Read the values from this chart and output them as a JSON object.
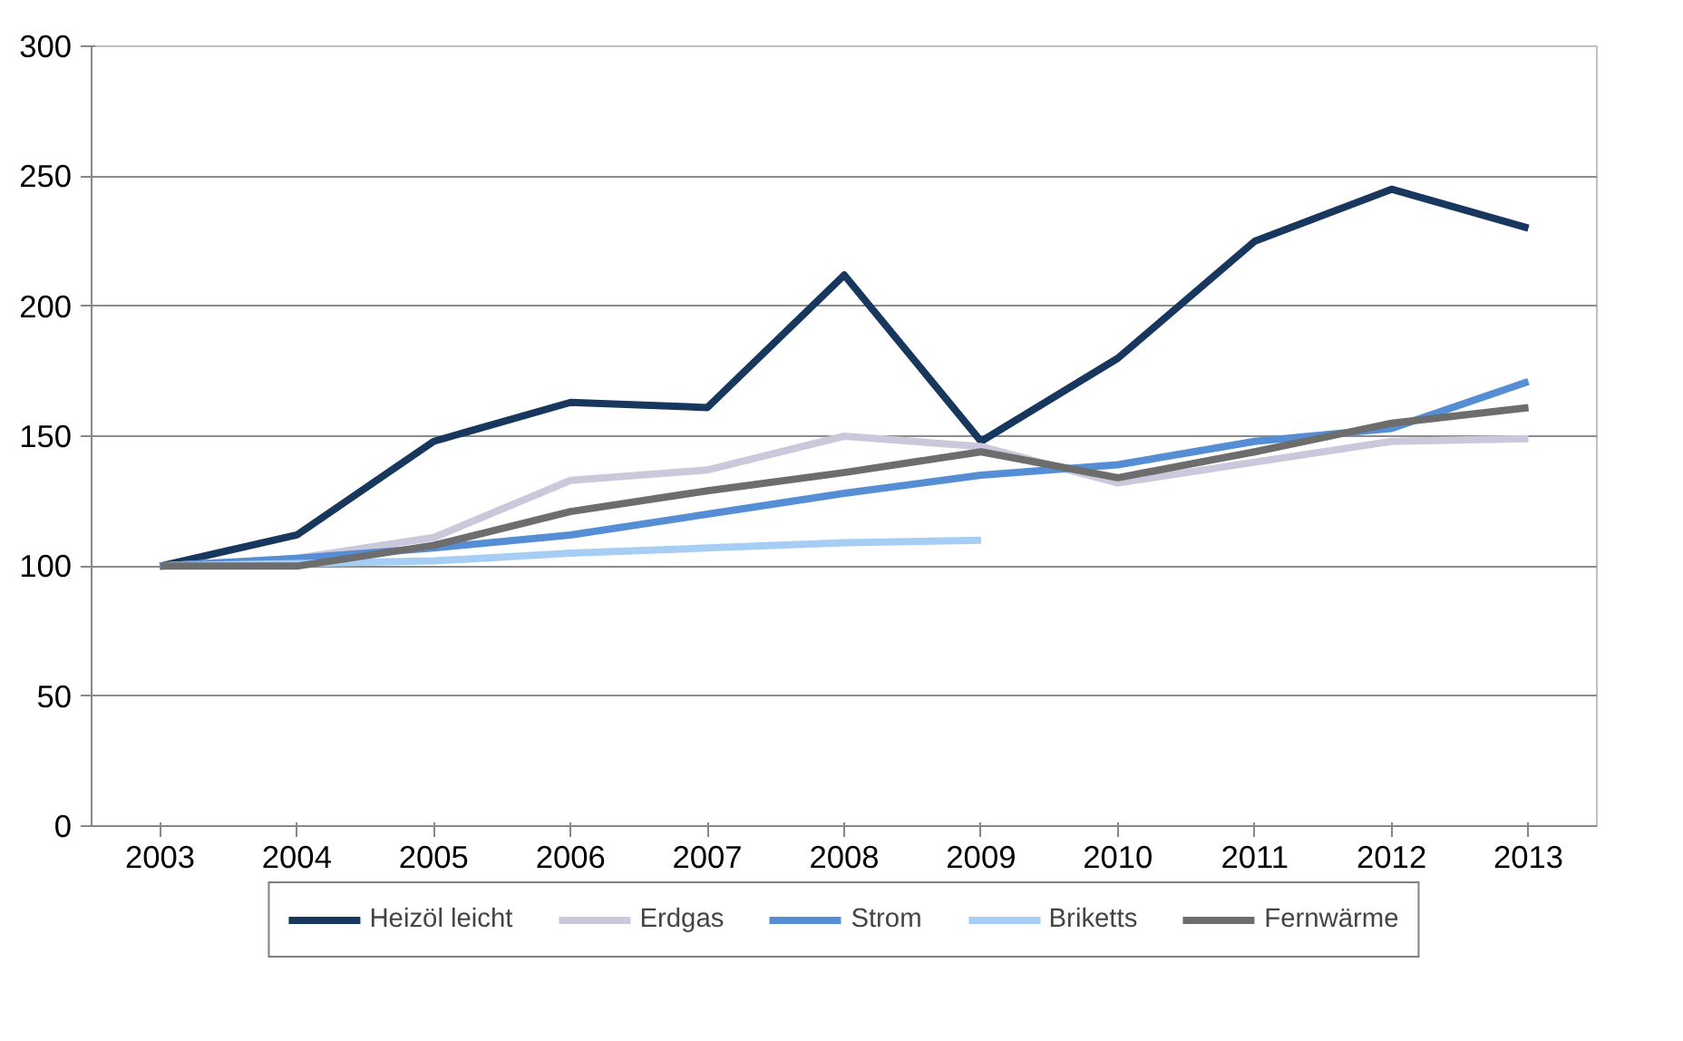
{
  "chart_data": {
    "type": "line",
    "categories": [
      "2003",
      "2004",
      "2005",
      "2006",
      "2007",
      "2008",
      "2009",
      "2010",
      "2011",
      "2012",
      "2013"
    ],
    "series": [
      {
        "name": "Heizöl leicht",
        "color": "#17375e",
        "values": [
          100,
          112,
          148,
          163,
          161,
          212,
          148,
          180,
          225,
          245,
          230
        ]
      },
      {
        "name": "Erdgas",
        "color": "#ccc8dc",
        "values": [
          100,
          103,
          111,
          133,
          137,
          150,
          146,
          132,
          140,
          148,
          149
        ]
      },
      {
        "name": "Strom",
        "color": "#558ed5",
        "values": [
          100,
          103,
          107,
          112,
          120,
          128,
          135,
          139,
          148,
          153,
          171
        ]
      },
      {
        "name": "Briketts",
        "color": "#a6cef5",
        "values": [
          100,
          101,
          102,
          105,
          107,
          109,
          110,
          null,
          null,
          null,
          null
        ]
      },
      {
        "name": "Fernwärme",
        "color": "#6d6d6d",
        "values": [
          100,
          100,
          108,
          121,
          129,
          136,
          144,
          134,
          144,
          155,
          161
        ]
      }
    ],
    "ylim": [
      0,
      300
    ],
    "yticks": [
      0,
      50,
      100,
      150,
      200,
      250,
      300
    ],
    "grid": "y",
    "legend": "bottom",
    "marker": "none",
    "line_style": "solid"
  }
}
